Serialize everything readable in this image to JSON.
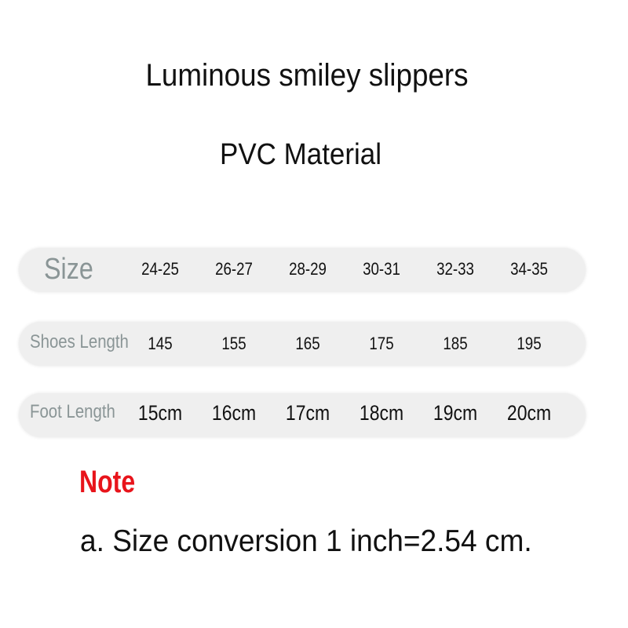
{
  "title": "Luminous smiley slippers",
  "subtitle": "PVC Material",
  "table": {
    "rows": [
      {
        "label": "Size",
        "values": [
          "24-25",
          "26-27",
          "28-29",
          "30-31",
          "32-33",
          "34-35"
        ]
      },
      {
        "label": "Shoes Length",
        "values": [
          "145",
          "155",
          "165",
          "175",
          "185",
          "195"
        ]
      },
      {
        "label": "Foot Length",
        "values": [
          "15cm",
          "16cm",
          "17cm",
          "18cm",
          "19cm",
          "20cm"
        ]
      }
    ]
  },
  "note": {
    "heading": "Note",
    "text": "a. Size conversion 1 inch=2.54 cm."
  },
  "colors": {
    "note_heading": "#e8141b",
    "label": "#8a9596",
    "row_bg": "#efefef"
  }
}
